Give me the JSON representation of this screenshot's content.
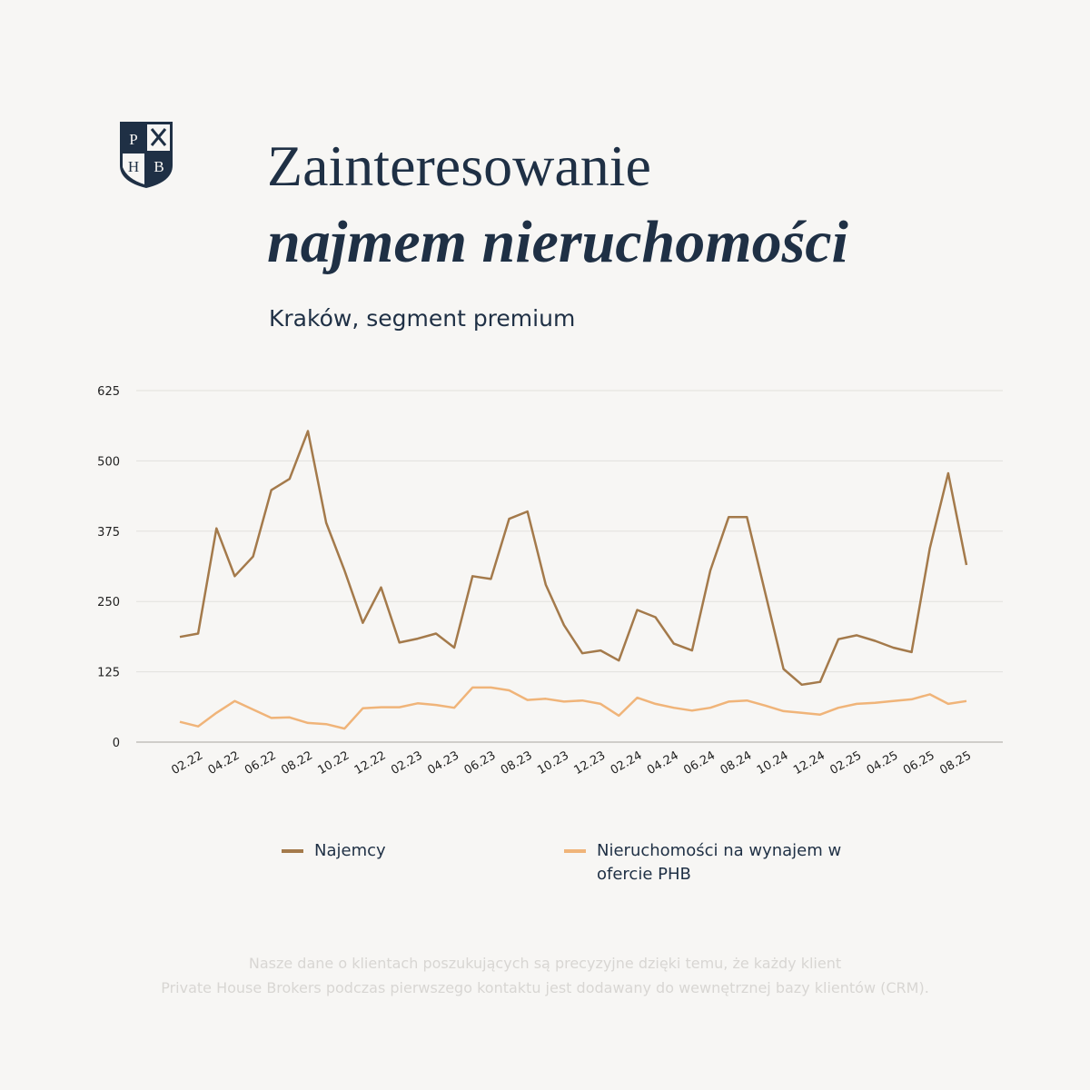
{
  "logo": {
    "letters": [
      "P",
      "H",
      "B"
    ]
  },
  "chart_data": {
    "type": "line",
    "title": "Zainteresowanie",
    "title_emphasis": "najmem nieruchomości",
    "subtitle": "Kraków, segment premium",
    "categories": [
      null,
      "02.22",
      null,
      "04.22",
      null,
      "06.22",
      null,
      "08.22",
      null,
      "10.22",
      null,
      "12.22",
      null,
      "02.23",
      null,
      "04.23",
      null,
      "06.23",
      null,
      "08.23",
      null,
      "10.23",
      null,
      "12.23",
      null,
      "02.24",
      null,
      "04.24",
      null,
      "06.24",
      null,
      "08.24",
      null,
      "10.24",
      null,
      "12.24",
      null,
      "02.25",
      null,
      "04.25",
      null,
      "06.25",
      null,
      "08.25"
    ],
    "series": [
      {
        "name": "Najemcy",
        "color": "#a47a4b",
        "values": [
          187,
          193,
          380,
          295,
          330,
          448,
          468,
          553,
          390,
          305,
          212,
          275,
          177,
          184,
          193,
          168,
          295,
          290,
          397,
          410,
          280,
          208,
          158,
          163,
          145,
          235,
          222,
          175,
          163,
          305,
          400,
          400,
          265,
          130,
          102,
          107,
          183,
          190,
          180,
          168,
          160,
          345,
          478,
          315
        ]
      },
      {
        "name": "Nieruchomości na wynajem w ofercie PHB",
        "color": "#f0b479",
        "values": [
          36,
          28,
          52,
          73,
          58,
          43,
          44,
          34,
          32,
          24,
          60,
          62,
          62,
          69,
          66,
          61,
          97,
          97,
          92,
          75,
          77,
          72,
          74,
          68,
          47,
          79,
          68,
          61,
          56,
          61,
          72,
          74,
          65,
          55,
          52,
          49,
          61,
          68,
          70,
          73,
          76,
          85,
          68,
          73
        ]
      }
    ],
    "ylim": [
      0,
      625
    ],
    "yticks": [
      0,
      125,
      250,
      375,
      500,
      625
    ],
    "grid": true,
    "footnote": [
      "Nasze dane o klientach poszukujących są precyzyjne dzięki temu, że każdy klient",
      "Private House Brokers podczas pierwszego kontaktu jest dodawany do wewnętrznej bazy klientów (CRM)."
    ]
  }
}
